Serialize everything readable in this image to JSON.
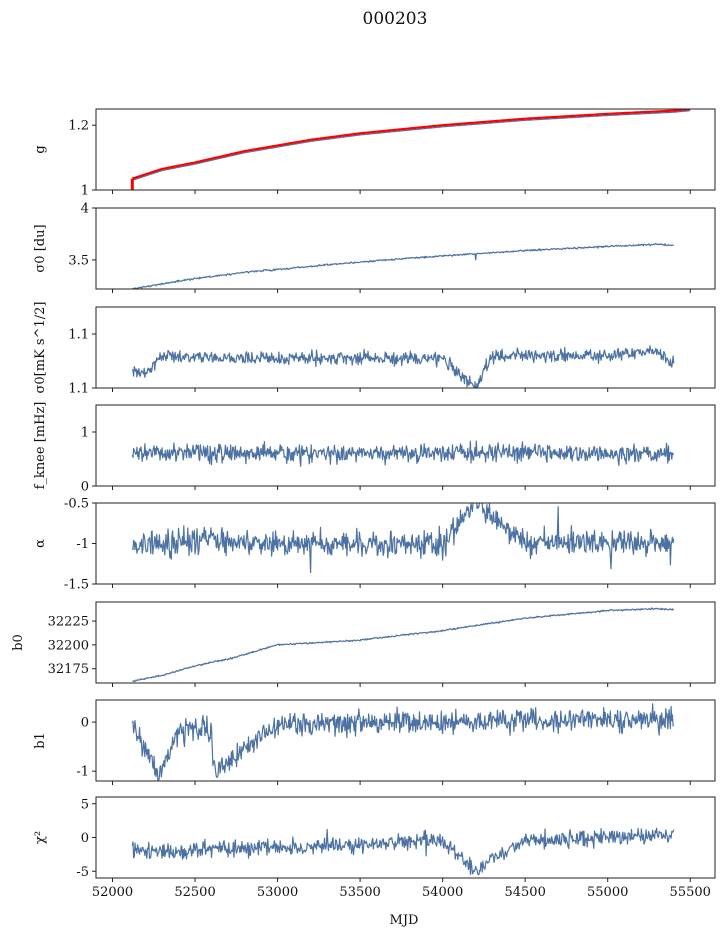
{
  "figure": {
    "title": "000203",
    "xlabel": "MJD"
  },
  "colors": {
    "series": "#4c72a3",
    "highlight": "#ff0000"
  },
  "chart_data": {
    "type": "line",
    "title": "000203",
    "xlabel": "MJD",
    "xlim": [
      51900,
      55650
    ],
    "xticks": [
      52000,
      52500,
      53000,
      53500,
      54000,
      54500,
      55000,
      55500
    ],
    "x_range": [
      52120,
      55400
    ],
    "shared_x": true,
    "grid": false,
    "panels": [
      {
        "id": "g",
        "ylabel": "g",
        "ylim": [
          1.0,
          1.25
        ],
        "yticks": [
          1.0,
          1.2
        ],
        "series": [
          {
            "color": "#4c72a3",
            "points": [
              [
                52120,
                1.03
              ],
              [
                52300,
                1.06
              ],
              [
                52500,
                1.08
              ],
              [
                52800,
                1.115
              ],
              [
                53200,
                1.15
              ],
              [
                53500,
                1.17
              ],
              [
                54000,
                1.195
              ],
              [
                54500,
                1.215
              ],
              [
                55000,
                1.23
              ],
              [
                55400,
                1.24
              ],
              [
                55500,
                1.245
              ]
            ]
          },
          {
            "color": "#ff0000",
            "points": [
              [
                52120,
                1.035
              ],
              [
                52300,
                1.065
              ],
              [
                52500,
                1.085
              ],
              [
                52800,
                1.12
              ],
              [
                53200,
                1.155
              ],
              [
                53500,
                1.175
              ],
              [
                54000,
                1.2
              ],
              [
                54500,
                1.22
              ],
              [
                55000,
                1.235
              ],
              [
                55400,
                1.245
              ],
              [
                55500,
                1.25
              ]
            ]
          }
        ]
      },
      {
        "id": "sigma0-du",
        "ylabel": "σ0 [du]",
        "ylim": [
          3.22,
          4.0
        ],
        "yticks": [
          3.5,
          4.0
        ],
        "series": [
          {
            "color": "#4c72a3",
            "points": [
              [
                52120,
                3.22
              ],
              [
                52300,
                3.27
              ],
              [
                52500,
                3.32
              ],
              [
                52800,
                3.38
              ],
              [
                53000,
                3.41
              ],
              [
                53500,
                3.48
              ],
              [
                54000,
                3.54
              ],
              [
                54500,
                3.59
              ],
              [
                55000,
                3.63
              ],
              [
                55300,
                3.65
              ],
              [
                55400,
                3.64
              ]
            ]
          }
        ]
      },
      {
        "id": "sigma0-mk",
        "ylabel": "σ0[mK s^1/2]",
        "ylim": [
          1.1,
          1.13
        ],
        "yticks": [
          1.1,
          1.12
        ],
        "series": [
          {
            "color": "#4c72a3",
            "points": [
              [
                52120,
                1.106
              ],
              [
                52200,
                1.105
              ],
              [
                52300,
                1.112
              ],
              [
                52600,
                1.111
              ],
              [
                53000,
                1.111
              ],
              [
                53500,
                1.111
              ],
              [
                54000,
                1.111
              ],
              [
                54200,
                1.1
              ],
              [
                54300,
                1.112
              ],
              [
                54700,
                1.112
              ],
              [
                55000,
                1.112
              ],
              [
                55300,
                1.114
              ],
              [
                55400,
                1.109
              ]
            ]
          }
        ]
      },
      {
        "id": "fknee",
        "ylabel": "f_knee [mHz]",
        "ylim": [
          0,
          1.5
        ],
        "yticks": [
          0,
          1
        ],
        "series": [
          {
            "color": "#4c72a3",
            "points": [
              [
                52120,
                0.6
              ],
              [
                52500,
                0.62
              ],
              [
                53000,
                0.6
              ],
              [
                53500,
                0.61
              ],
              [
                54000,
                0.6
              ],
              [
                54500,
                0.62
              ],
              [
                55000,
                0.6
              ],
              [
                55400,
                0.6
              ]
            ]
          }
        ]
      },
      {
        "id": "alpha",
        "ylabel": "α",
        "ylim": [
          -1.5,
          -0.5
        ],
        "yticks": [
          -1.5,
          -1.0,
          -0.5
        ],
        "series": [
          {
            "color": "#4c72a3",
            "points": [
              [
                52120,
                -1.0
              ],
              [
                52500,
                -0.98
              ],
              [
                53000,
                -1.0
              ],
              [
                53500,
                -1.0
              ],
              [
                54000,
                -1.0
              ],
              [
                54200,
                -0.5
              ],
              [
                54500,
                -1.0
              ],
              [
                55000,
                -0.98
              ],
              [
                55400,
                -1.0
              ]
            ]
          }
        ]
      },
      {
        "id": "b0",
        "ylabel": "b0",
        "ylim": [
          32160,
          32245
        ],
        "yticks": [
          32175,
          32200,
          32225
        ],
        "series": [
          {
            "color": "#4c72a3",
            "points": [
              [
                52120,
                32162
              ],
              [
                52300,
                32168
              ],
              [
                52500,
                32178
              ],
              [
                52700,
                32185
              ],
              [
                53000,
                32200
              ],
              [
                53500,
                32205
              ],
              [
                54000,
                32215
              ],
              [
                54500,
                32228
              ],
              [
                55000,
                32236
              ],
              [
                55300,
                32238
              ],
              [
                55400,
                32237
              ]
            ]
          }
        ]
      },
      {
        "id": "b1",
        "ylabel": "b1",
        "ylim": [
          -1.2,
          0.45
        ],
        "yticks": [
          -1,
          0
        ],
        "series": [
          {
            "color": "#4c72a3",
            "points": [
              [
                52120,
                0.0
              ],
              [
                52280,
                -1.1
              ],
              [
                52400,
                -0.15
              ],
              [
                52600,
                -0.1
              ],
              [
                52610,
                -1.0
              ],
              [
                53000,
                -0.05
              ],
              [
                53500,
                0.0
              ],
              [
                54000,
                0.0
              ],
              [
                54500,
                0.05
              ],
              [
                55000,
                0.05
              ],
              [
                55400,
                0.05
              ]
            ]
          }
        ]
      },
      {
        "id": "chi2",
        "ylabel": "χ²",
        "ylim": [
          -6,
          6
        ],
        "yticks": [
          -5,
          0,
          5
        ],
        "series": [
          {
            "color": "#4c72a3",
            "points": [
              [
                52120,
                -2.0
              ],
              [
                52500,
                -1.8
              ],
              [
                53000,
                -1.5
              ],
              [
                53500,
                -1.0
              ],
              [
                54000,
                -0.5
              ],
              [
                54200,
                -5.0
              ],
              [
                54500,
                -0.5
              ],
              [
                55000,
                0.0
              ],
              [
                55400,
                0.2
              ]
            ]
          }
        ]
      }
    ]
  }
}
